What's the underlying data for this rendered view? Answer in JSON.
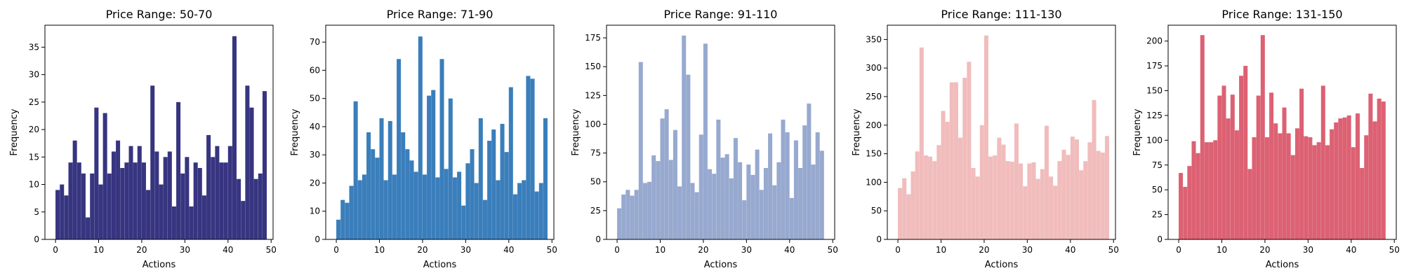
{
  "chart_data": [
    {
      "type": "bar",
      "title": "Price Range: 50-70",
      "xlabel": "Actions",
      "ylabel": "Frequency",
      "color": "#373580",
      "xlim": [
        -2.45,
        50.45
      ],
      "ylim": [
        0,
        39
      ],
      "xticks": [
        0,
        10,
        20,
        30,
        40,
        50
      ],
      "yticks": [
        0,
        5,
        10,
        15,
        20,
        25,
        30,
        35
      ],
      "x": [
        0,
        1,
        2,
        3,
        4,
        5,
        6,
        7,
        8,
        9,
        10,
        11,
        12,
        13,
        14,
        15,
        16,
        17,
        18,
        19,
        20,
        21,
        22,
        23,
        24,
        25,
        26,
        27,
        28,
        29,
        30,
        31,
        32,
        33,
        34,
        35,
        36,
        37,
        38,
        39,
        40,
        41,
        42,
        43,
        44,
        45,
        46,
        47,
        48
      ],
      "values": [
        9,
        10,
        8,
        14,
        18,
        14,
        12,
        4,
        12,
        24,
        10,
        23,
        12,
        16,
        18,
        13,
        14,
        17,
        14,
        17,
        14,
        9,
        28,
        16,
        10,
        15,
        16,
        6,
        25,
        12,
        15,
        6,
        14,
        13,
        8,
        19,
        15,
        17,
        14,
        14,
        17,
        37,
        11,
        7,
        28,
        24,
        11,
        12,
        27
      ]
    },
    {
      "type": "bar",
      "title": "Price Range: 71-90",
      "xlabel": "Actions",
      "ylabel": "Frequency",
      "color": "#3a7ebb",
      "xlim": [
        -2.45,
        50.45
      ],
      "ylim": [
        0,
        76
      ],
      "xticks": [
        0,
        10,
        20,
        30,
        40,
        50
      ],
      "yticks": [
        0,
        10,
        20,
        30,
        40,
        50,
        60,
        70
      ],
      "x": [
        0,
        1,
        2,
        3,
        4,
        5,
        6,
        7,
        8,
        9,
        10,
        11,
        12,
        13,
        14,
        15,
        16,
        17,
        18,
        19,
        20,
        21,
        22,
        23,
        24,
        25,
        26,
        27,
        28,
        29,
        30,
        31,
        32,
        33,
        34,
        35,
        36,
        37,
        38,
        39,
        40,
        41,
        42,
        43,
        44,
        45,
        46,
        47,
        48
      ],
      "values": [
        7,
        14,
        13,
        19,
        49,
        21,
        23,
        38,
        32,
        29,
        43,
        21,
        42,
        23,
        64,
        38,
        32,
        28,
        24,
        72,
        23,
        51,
        53,
        22,
        64,
        25,
        50,
        22,
        24,
        12,
        27,
        32,
        20,
        43,
        14,
        35,
        39,
        21,
        41,
        31,
        54,
        16,
        20,
        21,
        58,
        57,
        17,
        20,
        43
      ]
    },
    {
      "type": "bar",
      "title": "Price Range: 91-110",
      "xlabel": "Actions",
      "ylabel": "Frequency",
      "color": "#97a9cf",
      "xlim": [
        -2.45,
        50.45
      ],
      "ylim": [
        0,
        186
      ],
      "xticks": [
        0,
        10,
        20,
        30,
        40,
        50
      ],
      "yticks": [
        0,
        25,
        50,
        75,
        100,
        125,
        150,
        175
      ],
      "x": [
        0,
        1,
        2,
        3,
        4,
        5,
        6,
        7,
        8,
        9,
        10,
        11,
        12,
        13,
        14,
        15,
        16,
        17,
        18,
        19,
        20,
        21,
        22,
        23,
        24,
        25,
        26,
        27,
        28,
        29,
        30,
        31,
        32,
        33,
        34,
        35,
        36,
        37,
        38,
        39,
        40,
        41,
        42,
        43,
        44,
        45,
        46,
        47,
        48
      ],
      "values": [
        27,
        39,
        43,
        38,
        43,
        154,
        49,
        50,
        73,
        68,
        105,
        113,
        69,
        95,
        46,
        177,
        143,
        49,
        41,
        91,
        170,
        61,
        57,
        104,
        71,
        74,
        53,
        88,
        67,
        34,
        65,
        56,
        78,
        43,
        62,
        92,
        47,
        67,
        104,
        93,
        36,
        86,
        62,
        99,
        118,
        65,
        93,
        77,
        0
      ]
    },
    {
      "type": "bar",
      "title": "Price Range: 111-130",
      "xlabel": "Actions",
      "ylabel": "Frequency",
      "color": "#f1bcbc",
      "xlim": [
        -2.45,
        50.45
      ],
      "ylim": [
        0,
        375
      ],
      "xticks": [
        0,
        10,
        20,
        30,
        40,
        50
      ],
      "yticks": [
        0,
        50,
        100,
        150,
        200,
        250,
        300,
        350
      ],
      "x": [
        0,
        1,
        2,
        3,
        4,
        5,
        6,
        7,
        8,
        9,
        10,
        11,
        12,
        13,
        14,
        15,
        16,
        17,
        18,
        19,
        20,
        21,
        22,
        23,
        24,
        25,
        26,
        27,
        28,
        29,
        30,
        31,
        32,
        33,
        34,
        35,
        36,
        37,
        38,
        39,
        40,
        41,
        42,
        43,
        44,
        45,
        46,
        47,
        48
      ],
      "values": [
        90,
        107,
        79,
        119,
        154,
        336,
        147,
        145,
        137,
        165,
        225,
        206,
        275,
        275,
        178,
        283,
        311,
        125,
        110,
        200,
        357,
        145,
        147,
        178,
        166,
        137,
        136,
        203,
        133,
        93,
        133,
        135,
        106,
        123,
        199,
        110,
        94,
        137,
        157,
        148,
        180,
        175,
        121,
        137,
        170,
        244,
        155,
        152,
        181
      ]
    },
    {
      "type": "bar",
      "title": "Price Range: 131-150",
      "xlabel": "Actions",
      "ylabel": "Frequency",
      "color": "#dc6173",
      "xlim": [
        -2.45,
        50.45
      ],
      "ylim": [
        0,
        216
      ],
      "xticks": [
        0,
        10,
        20,
        30,
        40,
        50
      ],
      "yticks": [
        0,
        25,
        50,
        75,
        100,
        125,
        150,
        175,
        200
      ],
      "x": [
        0,
        1,
        2,
        3,
        4,
        5,
        6,
        7,
        8,
        9,
        10,
        11,
        12,
        13,
        14,
        15,
        16,
        17,
        18,
        19,
        20,
        21,
        22,
        23,
        24,
        25,
        26,
        27,
        28,
        29,
        30,
        31,
        32,
        33,
        34,
        35,
        36,
        37,
        38,
        39,
        40,
        41,
        42,
        43,
        44,
        45,
        46,
        47,
        48
      ],
      "values": [
        67,
        53,
        74,
        99,
        87,
        206,
        98,
        98,
        100,
        145,
        155,
        122,
        146,
        110,
        165,
        175,
        71,
        103,
        145,
        206,
        103,
        148,
        117,
        107,
        133,
        107,
        85,
        112,
        152,
        104,
        103,
        95,
        98,
        155,
        95,
        111,
        118,
        122,
        123,
        125,
        93,
        127,
        72,
        105,
        147,
        119,
        142,
        139,
        0
      ]
    }
  ]
}
